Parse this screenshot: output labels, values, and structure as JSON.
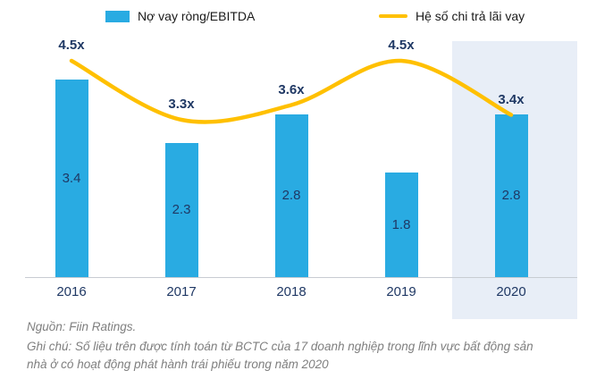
{
  "legend": {
    "bar_label": "Nợ vay ròng/EBITDA",
    "line_label": "Hệ số chi trả lãi vay"
  },
  "chart_data": {
    "type": "bar",
    "subtype": "bar-and-line-combo",
    "categories": [
      "2016",
      "2017",
      "2018",
      "2019",
      "2020"
    ],
    "series": [
      {
        "name": "Nợ vay ròng/EBITDA",
        "type": "bar",
        "values": [
          3.4,
          2.3,
          2.8,
          1.8,
          2.8
        ]
      },
      {
        "name": "Hệ số chi trả lãi vay",
        "type": "line",
        "values": [
          4.5,
          3.3,
          3.6,
          4.5,
          3.4
        ],
        "labels": [
          "4.5x",
          "3.3x",
          "3.6x",
          "4.5x",
          "3.4x"
        ]
      }
    ],
    "highlighted_category": "2020",
    "legend_position": "top",
    "grid": false,
    "colors": {
      "bar": "#29ABE2",
      "line": "#FFC000",
      "label": "#1F3864",
      "highlight": "#E8EEF7"
    }
  },
  "footer": {
    "source": "Nguồn: Fiin Ratings.",
    "note_line1": "Ghi chú: Số liệu trên được tính toán từ BCTC của 17 doanh nghiệp trong lĩnh vực bất động sản",
    "note_line2": "nhà ở có hoạt động phát hành trái phiếu trong năm 2020"
  }
}
